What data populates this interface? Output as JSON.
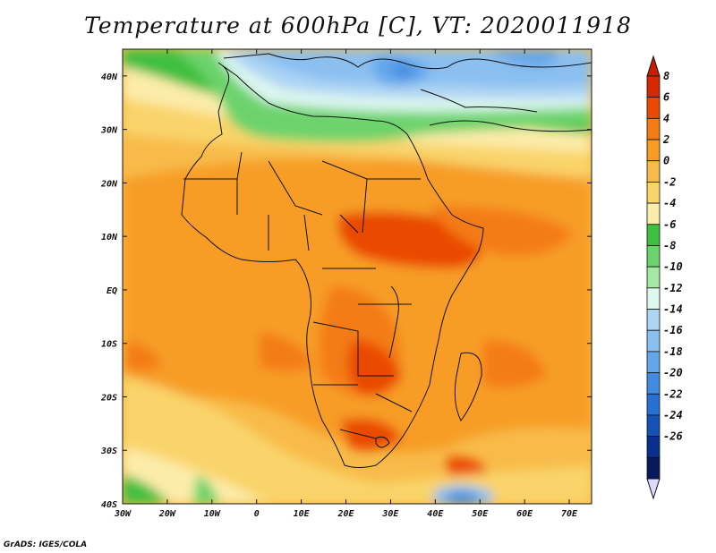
{
  "title": "Temperature at 600hPa [C], VT: 2020011918",
  "credit": "GrADS: IGES/COLA",
  "map": {
    "lon_range": [
      -30,
      75
    ],
    "lat_range": [
      -40,
      45
    ],
    "lat_labels": [
      {
        "lat": 40,
        "text": "40N"
      },
      {
        "lat": 30,
        "text": "30N"
      },
      {
        "lat": 20,
        "text": "20N"
      },
      {
        "lat": 10,
        "text": "10N"
      },
      {
        "lat": 0,
        "text": "EQ"
      },
      {
        "lat": -10,
        "text": "10S"
      },
      {
        "lat": -20,
        "text": "20S"
      },
      {
        "lat": -30,
        "text": "30S"
      },
      {
        "lat": -40,
        "text": "40S"
      }
    ],
    "lon_labels": [
      {
        "lon": -30,
        "text": "30W"
      },
      {
        "lon": -20,
        "text": "20W"
      },
      {
        "lon": -10,
        "text": "10W"
      },
      {
        "lon": 0,
        "text": "0"
      },
      {
        "lon": 10,
        "text": "10E"
      },
      {
        "lon": 20,
        "text": "20E"
      },
      {
        "lon": 30,
        "text": "30E"
      },
      {
        "lon": 40,
        "text": "40E"
      },
      {
        "lon": 50,
        "text": "50E"
      },
      {
        "lon": 60,
        "text": "60E"
      },
      {
        "lon": 70,
        "text": "70E"
      }
    ]
  },
  "colorbar": {
    "labels": [
      "8",
      "6",
      "4",
      "2",
      "0",
      "-2",
      "-4",
      "-6",
      "-8",
      "-10",
      "-12",
      "-14",
      "-16",
      "-18",
      "-20",
      "-22",
      "-24",
      "-26"
    ],
    "colors": [
      "#d62800",
      "#ea4a00",
      "#f47c12",
      "#f79d26",
      "#f8bb4a",
      "#f9d46a",
      "#fcecaa",
      "#3fbf3f",
      "#6cd36c",
      "#a4e8a4",
      "#def7f0",
      "#aed4f4",
      "#8abff0",
      "#64a6ea",
      "#418ce0",
      "#2670d4",
      "#1452b8",
      "#0a2f8c",
      "#061a5c"
    ],
    "top_cap_color": "#c81e00",
    "bottom_cap_color": "#dcdcfa"
  }
}
